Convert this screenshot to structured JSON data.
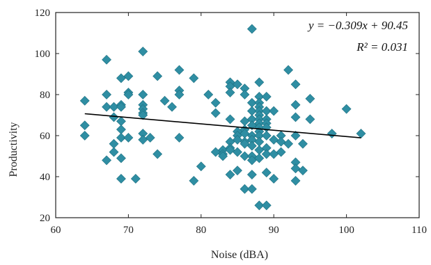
{
  "chart_data": {
    "type": "scatter",
    "xlabel": "Noise (dBA)",
    "ylabel": "Productivity",
    "xlim": [
      60,
      110
    ],
    "ylim": [
      20,
      120
    ],
    "xticks": [
      60,
      70,
      80,
      90,
      100,
      110
    ],
    "yticks": [
      20,
      40,
      60,
      80,
      100,
      120
    ],
    "grid": false,
    "marker": "diamond",
    "colors": {
      "points": "#2f8ea3",
      "points_stroke": "#1c6f80",
      "trendline": "#000000",
      "axes": "#222222"
    },
    "annotation": {
      "equation": "y = −0.309x + 90.45",
      "r2": "R² = 0.031",
      "placement": "top-right"
    },
    "trendline": {
      "slope": -0.309,
      "intercept": 90.45,
      "x_range": [
        64,
        102
      ]
    },
    "points": [
      [
        64,
        77
      ],
      [
        64,
        65
      ],
      [
        64,
        60
      ],
      [
        67,
        97
      ],
      [
        67,
        80
      ],
      [
        67,
        74
      ],
      [
        67,
        48
      ],
      [
        68,
        74
      ],
      [
        68,
        69
      ],
      [
        68,
        56
      ],
      [
        68,
        52
      ],
      [
        69,
        88
      ],
      [
        69,
        75
      ],
      [
        69,
        74
      ],
      [
        69,
        67
      ],
      [
        69,
        63
      ],
      [
        69,
        59
      ],
      [
        69,
        49
      ],
      [
        69,
        39
      ],
      [
        70,
        89
      ],
      [
        70,
        81
      ],
      [
        70,
        80
      ],
      [
        70,
        59
      ],
      [
        71,
        39
      ],
      [
        72,
        101
      ],
      [
        72,
        80
      ],
      [
        72,
        75
      ],
      [
        72,
        73
      ],
      [
        72,
        71
      ],
      [
        72,
        70
      ],
      [
        72,
        61
      ],
      [
        72,
        58
      ],
      [
        73,
        59
      ],
      [
        74,
        89
      ],
      [
        74,
        51
      ],
      [
        75,
        77
      ],
      [
        76,
        74
      ],
      [
        77,
        92
      ],
      [
        77,
        82
      ],
      [
        77,
        80
      ],
      [
        77,
        59
      ],
      [
        79,
        88
      ],
      [
        79,
        38
      ],
      [
        80,
        45
      ],
      [
        81,
        80
      ],
      [
        82,
        76
      ],
      [
        82,
        71
      ],
      [
        82,
        52
      ],
      [
        83,
        53
      ],
      [
        83,
        51
      ],
      [
        83,
        50
      ],
      [
        84,
        86
      ],
      [
        84,
        84
      ],
      [
        84,
        81
      ],
      [
        84,
        68
      ],
      [
        84,
        57
      ],
      [
        84,
        54
      ],
      [
        84,
        53
      ],
      [
        84,
        41
      ],
      [
        85,
        85
      ],
      [
        85,
        62
      ],
      [
        85,
        60
      ],
      [
        85,
        58
      ],
      [
        85,
        52
      ],
      [
        85,
        43
      ],
      [
        86,
        83
      ],
      [
        86,
        80
      ],
      [
        86,
        67
      ],
      [
        86,
        63
      ],
      [
        86,
        61
      ],
      [
        86,
        57
      ],
      [
        86,
        56
      ],
      [
        86,
        50
      ],
      [
        86,
        34
      ],
      [
        87,
        112
      ],
      [
        87,
        76
      ],
      [
        87,
        72
      ],
      [
        87,
        68
      ],
      [
        87,
        65
      ],
      [
        87,
        60
      ],
      [
        87,
        58
      ],
      [
        87,
        55
      ],
      [
        87,
        50
      ],
      [
        87,
        48
      ],
      [
        87,
        41
      ],
      [
        87,
        34
      ],
      [
        88,
        86
      ],
      [
        88,
        79
      ],
      [
        88,
        76
      ],
      [
        88,
        74
      ],
      [
        88,
        72
      ],
      [
        88,
        70
      ],
      [
        88,
        68
      ],
      [
        88,
        66
      ],
      [
        88,
        64
      ],
      [
        88,
        62
      ],
      [
        88,
        60
      ],
      [
        88,
        57
      ],
      [
        88,
        53
      ],
      [
        88,
        49
      ],
      [
        88,
        26
      ],
      [
        89,
        79
      ],
      [
        89,
        72
      ],
      [
        89,
        68
      ],
      [
        89,
        66
      ],
      [
        89,
        64
      ],
      [
        89,
        60
      ],
      [
        89,
        54
      ],
      [
        89,
        51
      ],
      [
        89,
        42
      ],
      [
        89,
        26
      ],
      [
        90,
        72
      ],
      [
        90,
        58
      ],
      [
        90,
        51
      ],
      [
        90,
        39
      ],
      [
        91,
        60
      ],
      [
        91,
        57
      ],
      [
        91,
        52
      ],
      [
        92,
        92
      ],
      [
        92,
        56
      ],
      [
        93,
        85
      ],
      [
        93,
        75
      ],
      [
        93,
        69
      ],
      [
        93,
        60
      ],
      [
        93,
        47
      ],
      [
        93,
        44
      ],
      [
        93,
        38
      ],
      [
        94,
        56
      ],
      [
        94,
        43
      ],
      [
        95,
        78
      ],
      [
        95,
        68
      ],
      [
        98,
        61
      ],
      [
        100,
        73
      ],
      [
        102,
        61
      ]
    ]
  }
}
